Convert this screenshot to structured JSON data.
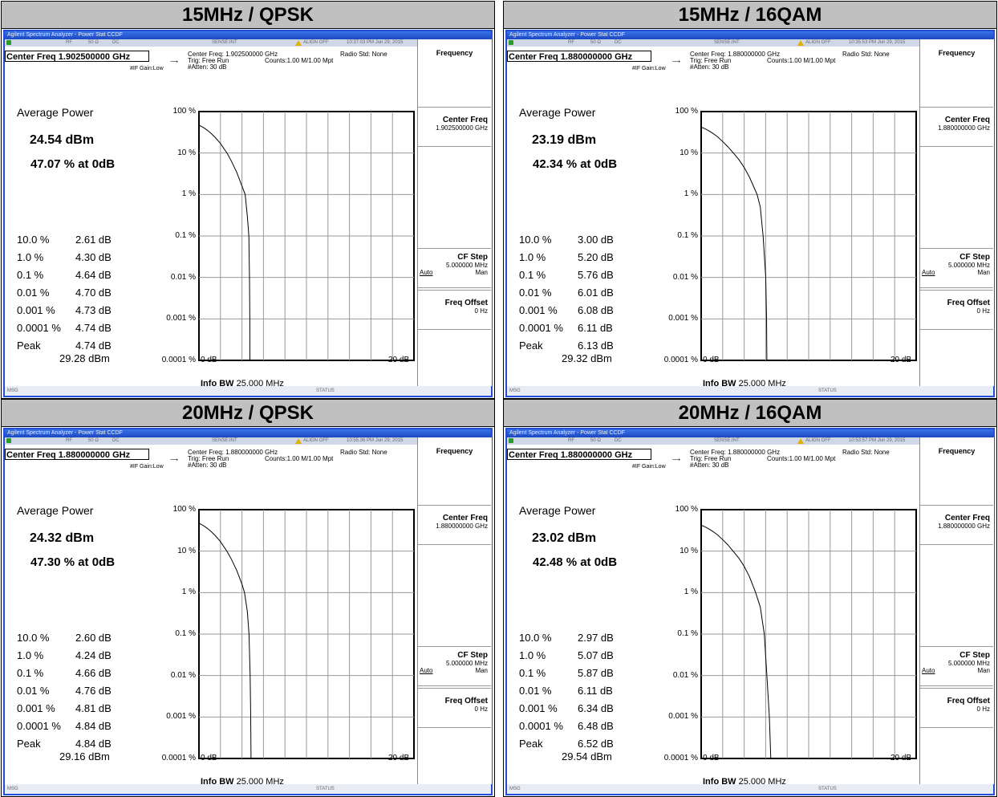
{
  "panels": [
    {
      "heading": "15MHz / QPSK",
      "titlebar": "Agilent Spectrum Analyzer - Power Stat CCDF",
      "status": {
        "rf": "RF",
        "ohm": "50 Ω",
        "dc": "DC",
        "sense": "SENSE:INT",
        "align": "ALIGN OFF",
        "time": "10:37:03 PM Jun 29, 2015"
      },
      "center_freq_box": "Center Freq 1.902500000 GHz",
      "center_freq_info": "Center Freq: 1.902500000 GHz",
      "trig": "Trig: Free Run",
      "radio_std": "Radio Std: None",
      "counts": "Counts:1.00 M/1.00 Mpt",
      "gain": "#IF Gain:Low",
      "atten": "#Atten: 30 dB",
      "avg_label": "Average Power",
      "avg_dbm": "24.54 dBm",
      "avg_pct": "47.07 % at 0dB",
      "stats": [
        {
          "label": "10.0 %",
          "value": "2.61 dB"
        },
        {
          "label": "1.0 %",
          "value": "4.30 dB"
        },
        {
          "label": "0.1 %",
          "value": "4.64 dB"
        },
        {
          "label": "0.01 %",
          "value": "4.70 dB"
        },
        {
          "label": "0.001 %",
          "value": "4.73 dB"
        },
        {
          "label": "0.0001 %",
          "value": "4.74 dB"
        },
        {
          "label": "Peak",
          "value": "4.74 dB"
        }
      ],
      "peak_dbm": "29.28 dBm",
      "y_ticks": [
        "100 %",
        "10 %",
        "1 %",
        "0.1 %",
        "0.01 %",
        "0.001 %",
        "0.0001 %"
      ],
      "x_left": "0 dB",
      "x_right": "20 dB",
      "info_bw_label": "Info BW",
      "info_bw_value": "25.000 MHz",
      "softkeys": {
        "menu": "Frequency",
        "cf_head": "Center Freq",
        "cf_val": "1.902500000 GHz",
        "step_head": "CF Step",
        "step_val": "5.000000 MHz",
        "step_auto": "Auto",
        "step_man": "Man",
        "offset_head": "Freq Offset",
        "offset_val": "0 Hz"
      },
      "bottom": {
        "msg": "MSG",
        "status": "STATUS"
      },
      "chart_data": {
        "type": "line",
        "y_scale": "log",
        "ylim": [
          0.0001,
          100
        ],
        "xlim": [
          0,
          20
        ],
        "series": [
          {
            "x": [
              0,
              0.5,
              1,
              1.5,
              2,
              2.61,
              3,
              3.5,
              4,
              4.3,
              4.5,
              4.64,
              4.7,
              4.73,
              4.74
            ],
            "y": [
              47.07,
              40,
              32,
              24,
              17,
              10,
              6.5,
              3.5,
              1.6,
              1.0,
              0.3,
              0.1,
              0.01,
              0.001,
              0.0001
            ]
          }
        ]
      }
    },
    {
      "heading": "15MHz / 16QAM",
      "titlebar": "Agilent Spectrum Analyzer - Power Stat CCDF",
      "status": {
        "rf": "RF",
        "ohm": "50 Ω",
        "dc": "DC",
        "sense": "SENSE:INT",
        "align": "ALIGN OFF",
        "time": "10:35:53 PM Jun 29, 2015"
      },
      "center_freq_box": "Center Freq 1.880000000 GHz",
      "center_freq_info": "Center Freq: 1.880000000 GHz",
      "trig": "Trig: Free Run",
      "radio_std": "Radio Std: None",
      "counts": "Counts:1.00 M/1.00 Mpt",
      "gain": "#IF Gain:Low",
      "atten": "#Atten: 30 dB",
      "avg_label": "Average Power",
      "avg_dbm": "23.19 dBm",
      "avg_pct": "42.34 % at 0dB",
      "stats": [
        {
          "label": "10.0 %",
          "value": "3.00 dB"
        },
        {
          "label": "1.0 %",
          "value": "5.20 dB"
        },
        {
          "label": "0.1 %",
          "value": "5.76 dB"
        },
        {
          "label": "0.01 %",
          "value": "6.01 dB"
        },
        {
          "label": "0.001 %",
          "value": "6.08 dB"
        },
        {
          "label": "0.0001 %",
          "value": "6.11 dB"
        },
        {
          "label": "Peak",
          "value": "6.13 dB"
        }
      ],
      "peak_dbm": "29.32 dBm",
      "y_ticks": [
        "100 %",
        "10 %",
        "1 %",
        "0.1 %",
        "0.01 %",
        "0.001 %",
        "0.0001 %"
      ],
      "x_left": "0 dB",
      "x_right": "20 dB",
      "info_bw_label": "Info BW",
      "info_bw_value": "25.000 MHz",
      "softkeys": {
        "menu": "Frequency",
        "cf_head": "Center Freq",
        "cf_val": "1.880000000 GHz",
        "step_head": "CF Step",
        "step_val": "5.000000 MHz",
        "step_auto": "Auto",
        "step_man": "Man",
        "offset_head": "Freq Offset",
        "offset_val": "0 Hz"
      },
      "bottom": {
        "msg": "MSG",
        "status": "STATUS"
      },
      "chart_data": {
        "type": "line",
        "y_scale": "log",
        "ylim": [
          0.0001,
          100
        ],
        "xlim": [
          0,
          20
        ],
        "series": [
          {
            "x": [
              0,
              0.5,
              1,
              1.5,
              2,
              2.5,
              3,
              3.5,
              4,
              4.5,
              5.2,
              5.5,
              5.76,
              6.01,
              6.08,
              6.11
            ],
            "y": [
              42.34,
              37,
              31,
              25,
              19,
              14,
              10,
              7,
              4.5,
              2.6,
              1.0,
              0.5,
              0.1,
              0.01,
              0.001,
              0.0001
            ]
          }
        ]
      }
    },
    {
      "heading": "20MHz / QPSK",
      "titlebar": "Agilent Spectrum Analyzer - Power Stat CCDF",
      "status": {
        "rf": "RF",
        "ohm": "50 Ω",
        "dc": "DC",
        "sense": "SENSE:INT",
        "align": "ALIGN OFF",
        "time": "10:55:36 PM Jun 29, 2015"
      },
      "center_freq_box": "Center Freq 1.880000000 GHz",
      "center_freq_info": "Center Freq: 1.880000000 GHz",
      "trig": "Trig: Free Run",
      "radio_std": "Radio Std: None",
      "counts": "Counts:1.00 M/1.00 Mpt",
      "gain": "#IF Gain:Low",
      "atten": "#Atten: 30 dB",
      "avg_label": "Average Power",
      "avg_dbm": "24.32 dBm",
      "avg_pct": "47.30 % at 0dB",
      "stats": [
        {
          "label": "10.0 %",
          "value": "2.60 dB"
        },
        {
          "label": "1.0 %",
          "value": "4.24 dB"
        },
        {
          "label": "0.1 %",
          "value": "4.66 dB"
        },
        {
          "label": "0.01 %",
          "value": "4.76 dB"
        },
        {
          "label": "0.001 %",
          "value": "4.81 dB"
        },
        {
          "label": "0.0001 %",
          "value": "4.84 dB"
        },
        {
          "label": "Peak",
          "value": "4.84 dB"
        }
      ],
      "peak_dbm": "29.16 dBm",
      "y_ticks": [
        "100 %",
        "10 %",
        "1 %",
        "0.1 %",
        "0.01 %",
        "0.001 %",
        "0.0001 %"
      ],
      "x_left": "0 dB",
      "x_right": "20 dB",
      "info_bw_label": "Info BW",
      "info_bw_value": "25.000 MHz",
      "softkeys": {
        "menu": "Frequency",
        "cf_head": "Center Freq",
        "cf_val": "1.880000000 GHz",
        "step_head": "CF Step",
        "step_val": "5.000000 MHz",
        "step_auto": "Auto",
        "step_man": "Man",
        "offset_head": "Freq Offset",
        "offset_val": "0 Hz"
      },
      "bottom": {
        "msg": "MSG",
        "status": "STATUS"
      },
      "chart_data": {
        "type": "line",
        "y_scale": "log",
        "ylim": [
          0.0001,
          100
        ],
        "xlim": [
          0,
          20
        ],
        "series": [
          {
            "x": [
              0,
              0.5,
              1,
              1.5,
              2,
              2.6,
              3,
              3.5,
              4,
              4.24,
              4.5,
              4.66,
              4.76,
              4.81,
              4.84
            ],
            "y": [
              47.3,
              40,
              32,
              24,
              17,
              10,
              6.5,
              3.5,
              1.6,
              1.0,
              0.35,
              0.1,
              0.01,
              0.001,
              0.0001
            ]
          }
        ]
      }
    },
    {
      "heading": "20MHz / 16QAM",
      "titlebar": "Agilent Spectrum Analyzer - Power Stat CCDF",
      "status": {
        "rf": "RF",
        "ohm": "50 Ω",
        "dc": "DC",
        "sense": "SENSE:INT",
        "align": "ALIGN OFF",
        "time": "10:53:57 PM Jun 29, 2015"
      },
      "center_freq_box": "Center Freq 1.880000000 GHz",
      "center_freq_info": "Center Freq: 1.880000000 GHz",
      "trig": "Trig: Free Run",
      "radio_std": "Radio Std: None",
      "counts": "Counts:1.00 M/1.00 Mpt",
      "gain": "#IF Gain:Low",
      "atten": "#Atten: 30 dB",
      "avg_label": "Average Power",
      "avg_dbm": "23.02 dBm",
      "avg_pct": "42.48 % at 0dB",
      "stats": [
        {
          "label": "10.0 %",
          "value": "2.97 dB"
        },
        {
          "label": "1.0 %",
          "value": "5.07 dB"
        },
        {
          "label": "0.1 %",
          "value": "5.87 dB"
        },
        {
          "label": "0.01 %",
          "value": "6.11 dB"
        },
        {
          "label": "0.001 %",
          "value": "6.34 dB"
        },
        {
          "label": "0.0001 %",
          "value": "6.48 dB"
        },
        {
          "label": "Peak",
          "value": "6.52 dB"
        }
      ],
      "peak_dbm": "29.54 dBm",
      "y_ticks": [
        "100 %",
        "10 %",
        "1 %",
        "0.1 %",
        "0.01 %",
        "0.001 %",
        "0.0001 %"
      ],
      "x_left": "0 dB",
      "x_right": "20 dB",
      "info_bw_label": "Info BW",
      "info_bw_value": "25.000 MHz",
      "softkeys": {
        "menu": "Frequency",
        "cf_head": "Center Freq",
        "cf_val": "1.880000000 GHz",
        "step_head": "CF Step",
        "step_val": "5.000000 MHz",
        "step_auto": "Auto",
        "step_man": "Man",
        "offset_head": "Freq Offset",
        "offset_val": "0 Hz"
      },
      "bottom": {
        "msg": "MSG",
        "status": "STATUS"
      },
      "chart_data": {
        "type": "line",
        "y_scale": "log",
        "ylim": [
          0.0001,
          100
        ],
        "xlim": [
          0,
          20
        ],
        "series": [
          {
            "x": [
              0,
              0.5,
              1,
              1.5,
              2,
              2.5,
              2.97,
              3.5,
              4,
              4.5,
              5.07,
              5.5,
              5.87,
              6.11,
              6.34,
              6.48
            ],
            "y": [
              42.48,
              37,
              31,
              25,
              19,
              14,
              10,
              6.8,
              4.3,
              2.4,
              1.0,
              0.45,
              0.1,
              0.01,
              0.001,
              0.0001
            ]
          }
        ]
      }
    }
  ]
}
